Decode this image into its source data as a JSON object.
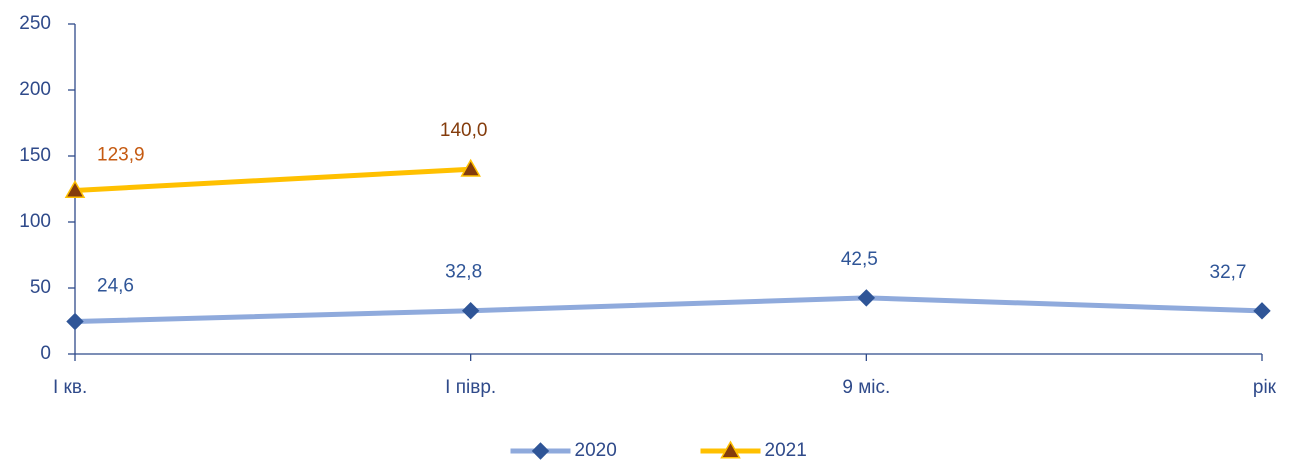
{
  "chart_data": {
    "type": "line",
    "categories": [
      "І кв.",
      "І півр.",
      "9 міс.",
      "рік"
    ],
    "series": [
      {
        "name": "2020",
        "color": "#8faadc",
        "marker": "diamond",
        "marker_color": "#2f5597",
        "label_colors": [
          "#2f5597",
          "#2f5597",
          "#2f5597",
          "#2f5597"
        ],
        "values": [
          24.6,
          32.8,
          42.5,
          32.7
        ],
        "value_labels": [
          "24,6",
          "32,8",
          "42,5",
          "32,7"
        ]
      },
      {
        "name": "2021",
        "color": "#ffc000",
        "marker": "triangle",
        "marker_color": "#843c0c",
        "label_colors": [
          "#c55a11",
          "#843c0c",
          null,
          null
        ],
        "values": [
          123.9,
          140.0,
          null,
          null
        ],
        "value_labels": [
          "123,9",
          "140,0",
          null,
          null
        ]
      }
    ],
    "ylim": [
      0,
      250
    ],
    "yticks": [
      0,
      50,
      100,
      150,
      200,
      250
    ],
    "grid": false,
    "legend": "bottom"
  }
}
